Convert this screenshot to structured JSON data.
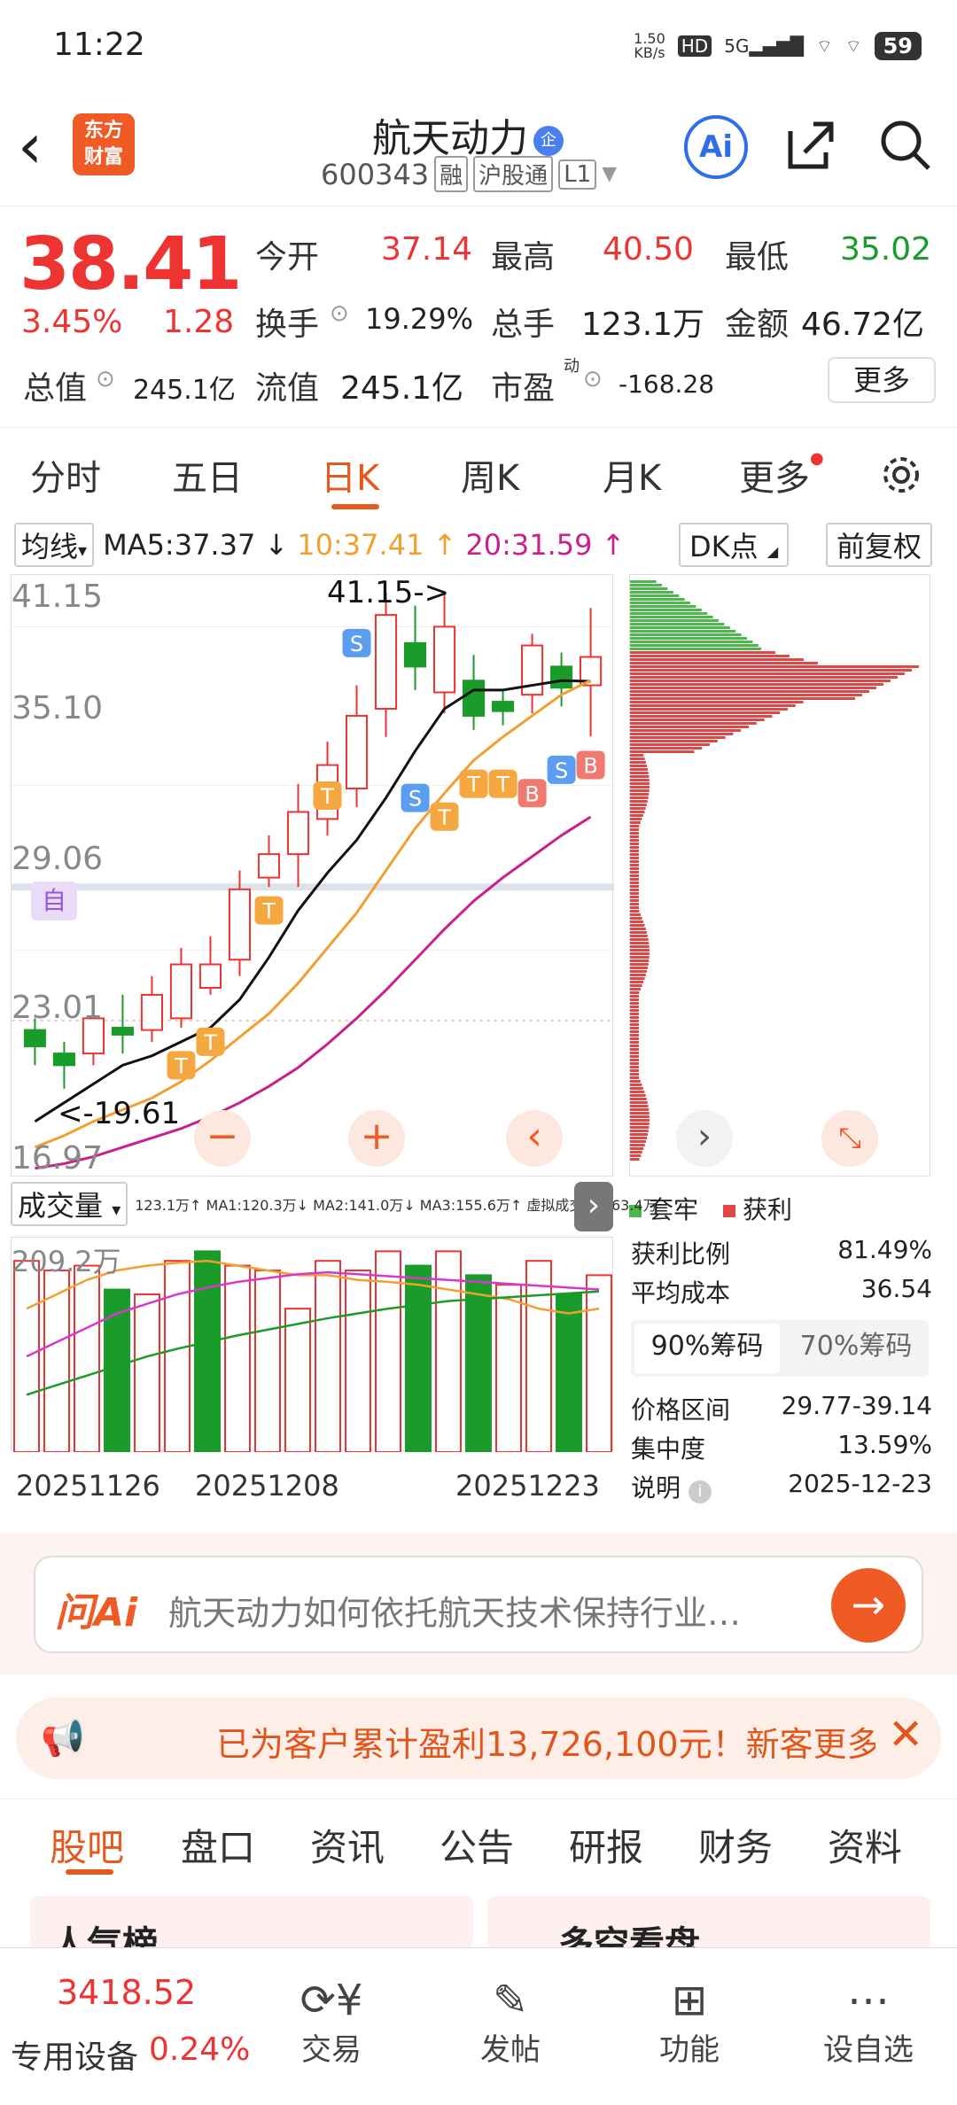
{
  "status": {
    "time": "11:22",
    "speed": "1.50\nKB/s",
    "battery": "59"
  },
  "header": {
    "title": "航天动力",
    "code": "600343",
    "tags": [
      "融",
      "沪股通",
      "L1"
    ],
    "logo": "东方财富",
    "ai": "Ai"
  },
  "quote": {
    "price": "38.41",
    "pct": "3.45%",
    "chg": "1.28",
    "open_label": "今开",
    "open": "37.14",
    "high_label": "最高",
    "high": "40.50",
    "low_label": "最低",
    "low": "35.02",
    "turn_label": "换手",
    "turn": "19.29%",
    "vol_label": "总手",
    "vol": "123.1万",
    "amt_label": "金额",
    "amt": "46.72亿",
    "mcap_label": "总值",
    "mcap": "245.1亿",
    "float_label": "流值",
    "float": "245.1亿",
    "pe_label": "市盈",
    "pe_sup": "动",
    "pe": "-168.28",
    "more": "更多"
  },
  "tabs": [
    "分时",
    "五日",
    "日K",
    "周K",
    "月K",
    "更多"
  ],
  "ma": {
    "junxian": "均线",
    "ma5": "MA5:37.37 ↓",
    "ma10": "10:37.41 ↑",
    "ma20": "20:31.59 ↑",
    "dk": "DK点",
    "fq": "前复权"
  },
  "axis": {
    "y": [
      "41.15",
      "35.10",
      "29.06",
      "23.01",
      "16.97"
    ],
    "hi_note": "41.15->",
    "lo_note": "<-19.61",
    "self": "自"
  },
  "chart_data": {
    "type": "candlestick",
    "ylim": [
      16.97,
      41.15
    ],
    "candles": [
      {
        "o": 22.5,
        "c": 21.8,
        "h": 23.0,
        "l": 21.0
      },
      {
        "o": 21.5,
        "c": 21.0,
        "h": 22.0,
        "l": 20.0
      },
      {
        "o": 21.5,
        "c": 23.0,
        "h": 23.5,
        "l": 21.0
      },
      {
        "o": 22.6,
        "c": 22.3,
        "h": 24.0,
        "l": 21.5
      },
      {
        "o": 22.5,
        "c": 24.0,
        "h": 24.8,
        "l": 22.0
      },
      {
        "o": 23.0,
        "c": 25.3,
        "h": 26.0,
        "l": 22.6
      },
      {
        "o": 24.3,
        "c": 25.3,
        "h": 26.5,
        "l": 24.0
      },
      {
        "o": 25.5,
        "c": 28.5,
        "h": 29.3,
        "l": 24.8
      },
      {
        "o": 29.0,
        "c": 30.0,
        "h": 30.8,
        "l": 28.6
      },
      {
        "o": 30.0,
        "c": 31.8,
        "h": 33.0,
        "l": 28.6
      },
      {
        "o": 31.5,
        "c": 33.8,
        "h": 34.8,
        "l": 30.8
      },
      {
        "o": 32.8,
        "c": 35.9,
        "h": 37.2,
        "l": 32.0
      },
      {
        "o": 36.2,
        "c": 40.2,
        "h": 41.15,
        "l": 35.0
      },
      {
        "o": 39.0,
        "c": 38.0,
        "h": 40.6,
        "l": 37.0
      },
      {
        "o": 36.9,
        "c": 39.7,
        "h": 41.2,
        "l": 36.0
      },
      {
        "o": 37.4,
        "c": 35.9,
        "h": 38.5,
        "l": 35.3
      },
      {
        "o": 36.5,
        "c": 36.1,
        "h": 37.0,
        "l": 35.5
      },
      {
        "o": 36.8,
        "c": 38.9,
        "h": 39.4,
        "l": 36.0
      },
      {
        "o": 38.0,
        "c": 37.1,
        "h": 38.6,
        "l": 36.3
      },
      {
        "o": 37.2,
        "c": 38.41,
        "h": 40.5,
        "l": 35.02
      }
    ],
    "ma5": [
      18.6,
      19.4,
      20.2,
      21.0,
      21.4,
      22.0,
      22.6,
      23.8,
      25.6,
      27.6,
      29.2,
      30.6,
      32.4,
      34.4,
      36.2,
      37.0,
      37.0,
      37.2,
      37.4,
      37.37
    ],
    "ma10": [
      17.5,
      18.0,
      18.6,
      19.1,
      19.6,
      20.3,
      21.2,
      22.2,
      23.2,
      24.5,
      26.0,
      27.5,
      29.3,
      31.1,
      32.6,
      34.0,
      35.0,
      35.9,
      36.8,
      37.41
    ],
    "ma20": [
      16.6,
      16.8,
      17.1,
      17.5,
      17.9,
      18.3,
      18.8,
      19.4,
      20.1,
      20.9,
      21.9,
      23.0,
      24.2,
      25.5,
      26.8,
      28.0,
      29.0,
      29.9,
      30.8,
      31.59
    ],
    "signals": [
      "T",
      "T",
      "T",
      "T",
      "S",
      "S",
      "T",
      "T",
      "T",
      "B",
      "S",
      "B"
    ]
  },
  "volume": {
    "label": "成交量",
    "note": "123.1万↑ MA1:120.3万↓ MA2:141.0万↓ MA3:155.6万↑ 虚拟成交量:163.4万",
    "ymax": "209.2万",
    "bars": [
      200,
      190,
      195,
      170,
      165,
      200,
      210,
      195,
      190,
      150,
      200,
      190,
      210,
      195,
      210,
      185,
      175,
      200,
      165,
      185
    ],
    "up": [
      true,
      true,
      true,
      false,
      true,
      true,
      false,
      true,
      true,
      true,
      true,
      true,
      true,
      false,
      true,
      false,
      true,
      true,
      false,
      true
    ],
    "dates": [
      "20251126",
      "20251208",
      "20251223"
    ]
  },
  "chips": {
    "trap": "套牢",
    "profit": "获利",
    "rows": [
      {
        "k": "获利比例",
        "v": "81.49%"
      },
      {
        "k": "平均成本",
        "v": "36.54"
      }
    ],
    "tabs": [
      "90%筹码",
      "70%筹码"
    ],
    "rows2": [
      {
        "k": "价格区间",
        "v": "29.77-39.14"
      },
      {
        "k": "集中度",
        "v": "13.59%"
      },
      {
        "k": "说明",
        "v": "2025-12-23"
      }
    ]
  },
  "ask": {
    "brand": "问Ai",
    "text": "航天动力如何依托航天技术保持行业…"
  },
  "notice": {
    "text": "已为客户累计盈利13,726,100元！新客更多"
  },
  "subtabs": [
    "股吧",
    "盘口",
    "资讯",
    "公告",
    "研报",
    "财务",
    "资料"
  ],
  "peek": [
    "人气榜",
    "多空看盘"
  ],
  "bottom": {
    "index": "3418.52",
    "idx_label": "专用设备",
    "idx_pct": "0.24%",
    "items": [
      "交易",
      "发帖",
      "功能",
      "设自选"
    ]
  },
  "colors": {
    "up": "#e33",
    "down": "#1a9c2a",
    "accent": "#e55a1c",
    "ma5": "#111",
    "ma10": "#f0a030",
    "ma20": "#c8208c"
  }
}
